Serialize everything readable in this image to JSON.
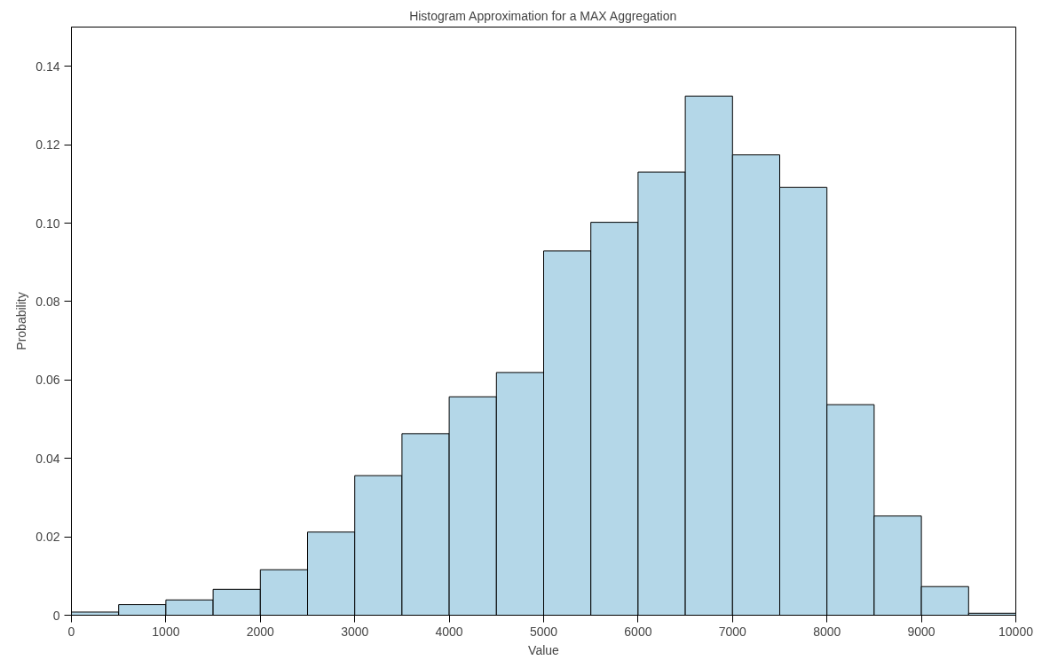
{
  "chart_data": {
    "type": "histogram",
    "title": "Histogram Approximation for a MAX Aggregation",
    "xlabel": "Value",
    "ylabel": "Probability",
    "bins": [
      0,
      500,
      1000,
      1500,
      2000,
      2500,
      3000,
      3500,
      4000,
      4500,
      5000,
      5500,
      6000,
      6500,
      7000,
      7500,
      8000,
      8500,
      9000,
      9500,
      10000
    ],
    "values": [
      0.0008,
      0.0027,
      0.0039,
      0.0066,
      0.0116,
      0.0212,
      0.0356,
      0.0463,
      0.0557,
      0.0619,
      0.0929,
      0.1002,
      0.113,
      0.1324,
      0.1174,
      0.1091,
      0.0537,
      0.0253,
      0.0073,
      0.0005
    ],
    "color": "#b4d7e8",
    "xlim": [
      0,
      10000
    ],
    "ylim": [
      0,
      0.15
    ],
    "xticks": [
      0,
      1000,
      2000,
      3000,
      4000,
      5000,
      6000,
      7000,
      8000,
      9000,
      10000
    ],
    "yticks": [
      0,
      0.02,
      0.04,
      0.06,
      0.08,
      {
        "value": 0.1,
        "label": "0.10"
      },
      0.12,
      0.14
    ],
    "grid": false
  }
}
